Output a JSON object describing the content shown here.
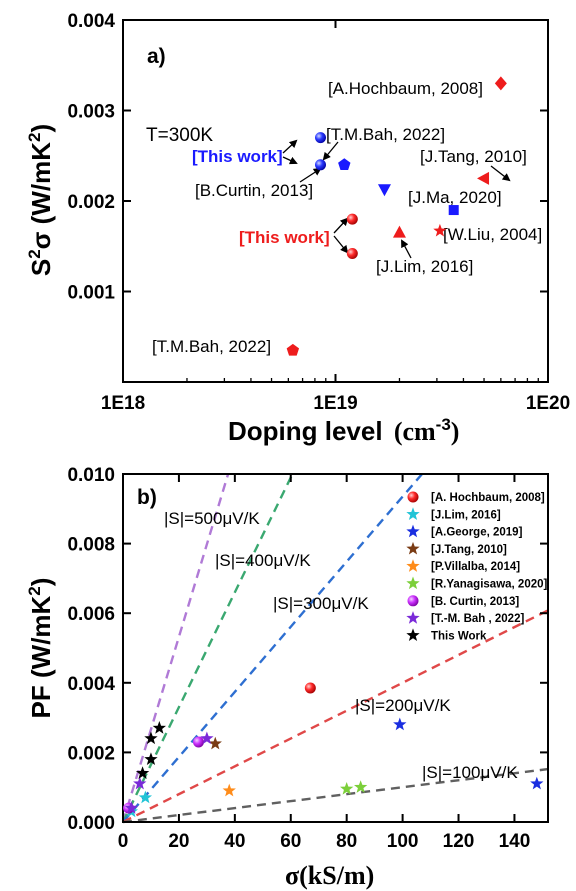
{
  "chart_data": [
    {
      "type": "scatter",
      "panel_label": "a)",
      "xlabel": "Doping level",
      "xlabel_unit": "(cm",
      "xlabel_exp": "-3",
      "xlabel_close": ")",
      "ylabel": "S",
      "ylabel_sup": "2",
      "ylabel_rest": "σ (W/mK",
      "ylabel_sup2": "2",
      "ylabel_close": ")",
      "x_scale": "log",
      "xlim": [
        1e+18,
        1e+20
      ],
      "ylim": [
        0,
        0.004
      ],
      "x_ticks": [
        {
          "value": 1e+18,
          "label": "1E18"
        },
        {
          "value": 1e+19,
          "label": "1E19"
        },
        {
          "value": 1e+20,
          "label": "1E20"
        }
      ],
      "y_ticks": [
        {
          "value": 0.001,
          "label": "0.001"
        },
        {
          "value": 0.002,
          "label": "0.002"
        },
        {
          "value": 0.003,
          "label": "0.003"
        },
        {
          "value": 0.004,
          "label": "0.004"
        }
      ],
      "temperature_note": "T=300K",
      "points": [
        {
          "x": 8.5e+18,
          "y": 0.0027,
          "marker": "circle",
          "color": "#1a1aff"
        },
        {
          "x": 8.5e+18,
          "y": 0.0024,
          "marker": "circle",
          "color": "#1a1aff"
        },
        {
          "x": 1.1e+19,
          "y": 0.0024,
          "marker": "pentagon",
          "color": "#1a1aff"
        },
        {
          "x": 1.7e+19,
          "y": 0.00213,
          "marker": "triangle-down",
          "color": "#1a1aff"
        },
        {
          "x": 3.6e+19,
          "y": 0.0019,
          "marker": "square",
          "color": "#1a1aff"
        },
        {
          "x": 6e+19,
          "y": 0.0033,
          "marker": "diamond",
          "color": "#ee1c1c"
        },
        {
          "x": 5e+19,
          "y": 0.00225,
          "marker": "triangle-left",
          "color": "#ee1c1c"
        },
        {
          "x": 3.1e+19,
          "y": 0.00167,
          "marker": "star",
          "color": "#ee1c1c"
        },
        {
          "x": 2e+19,
          "y": 0.00165,
          "marker": "triangle-up",
          "color": "#ee1c1c"
        },
        {
          "x": 1.2e+19,
          "y": 0.0018,
          "marker": "circle",
          "color": "#ee1c1c"
        },
        {
          "x": 1.2e+19,
          "y": 0.00142,
          "marker": "circle",
          "color": "#ee1c1c"
        },
        {
          "x": 6.3e+18,
          "y": 0.00035,
          "marker": "pentagon",
          "color": "#ee1c1c"
        }
      ],
      "annotations": [
        {
          "text": "[A.Hochbaum, 2008]",
          "style": "normal"
        },
        {
          "text": "[T.M.Bah, 2022]",
          "style": "normal"
        },
        {
          "text": "[This work]",
          "style": "blue"
        },
        {
          "text": "[J.Tang, 2010]",
          "style": "normal"
        },
        {
          "text": "[B.Curtin, 2013]",
          "style": "normal"
        },
        {
          "text": "[J.Ma, 2020]",
          "style": "normal"
        },
        {
          "text": "[This work]",
          "style": "red"
        },
        {
          "text": "[W.Liu, 2004]",
          "style": "normal"
        },
        {
          "text": "[J.Lim, 2016]",
          "style": "normal"
        },
        {
          "text": "[T.M.Bah, 2022]",
          "style": "normal"
        }
      ]
    },
    {
      "type": "scatter",
      "panel_label": "b)",
      "xlabel": "σ(kS/m)",
      "ylabel": "PF (W/mK",
      "ylabel_sup": "2",
      "ylabel_close": ")",
      "xlim": [
        0,
        152
      ],
      "ylim": [
        0,
        0.01
      ],
      "x_ticks": [
        0,
        20,
        40,
        60,
        80,
        100,
        120,
        140
      ],
      "y_ticks": [
        {
          "value": 0,
          "label": "0.000"
        },
        {
          "value": 0.002,
          "label": "0.002"
        },
        {
          "value": 0.004,
          "label": "0.004"
        },
        {
          "value": 0.006,
          "label": "0.006"
        },
        {
          "value": 0.008,
          "label": "0.008"
        },
        {
          "value": 0.01,
          "label": "0.010"
        }
      ],
      "reference_lines": [
        {
          "label": "|S|=500μV/K",
          "slope": 0.000266,
          "color": "#b07ad6"
        },
        {
          "label": "|S|=400μV/K",
          "slope": 0.000165,
          "color": "#3aa870"
        },
        {
          "label": "|S|=300μV/K",
          "slope": 9.35e-05,
          "color": "#2e6fd1"
        },
        {
          "label": "|S|=200μV/K",
          "slope": 4e-05,
          "color": "#e04848"
        },
        {
          "label": "|S|=100μV/K",
          "slope": 1e-05,
          "color": "#606060"
        }
      ],
      "legend": [
        {
          "name": "[A. Hochbaum, 2008]",
          "marker": "ball",
          "color": "#ee1c1c"
        },
        {
          "name": "[J.Lim, 2016]",
          "marker": "star",
          "color": "#22c4d6"
        },
        {
          "name": "[A.George, 2019]",
          "marker": "star",
          "color": "#1a2ee0"
        },
        {
          "name": "[J.Tang, 2010]",
          "marker": "star",
          "color": "#7a3b14"
        },
        {
          "name": "[P.Villalba, 2014]",
          "marker": "star",
          "color": "#ff8c1a"
        },
        {
          "name": "[R.Yanagisawa, 2020]",
          "marker": "star",
          "color": "#7ccf3a"
        },
        {
          "name": "[B. Curtin, 2013]",
          "marker": "ball",
          "color": "#cc33ff"
        },
        {
          "name": "[T.-M. Bah , 2022]",
          "marker": "star",
          "color": "#7a2ad8"
        },
        {
          "name": "This Work",
          "marker": "star",
          "color": "#000000"
        }
      ],
      "series": [
        {
          "series_index": 0,
          "points": [
            [
              67,
              0.00385
            ]
          ]
        },
        {
          "series_index": 1,
          "points": [
            [
              8,
              0.0007
            ],
            [
              3,
              0.0003
            ]
          ]
        },
        {
          "series_index": 2,
          "points": [
            [
              99,
              0.0028
            ],
            [
              148,
              0.0011
            ]
          ]
        },
        {
          "series_index": 3,
          "points": [
            [
              33,
              0.00225
            ]
          ]
        },
        {
          "series_index": 4,
          "points": [
            [
              38,
              0.0009
            ]
          ]
        },
        {
          "series_index": 5,
          "points": [
            [
              80,
              0.00095
            ],
            [
              85,
              0.001
            ]
          ]
        },
        {
          "series_index": 6,
          "points": [
            [
              27,
              0.0023
            ],
            [
              2,
              0.0004
            ]
          ]
        },
        {
          "series_index": 7,
          "points": [
            [
              30,
              0.0024
            ],
            [
              6,
              0.0011
            ],
            [
              3,
              0.0004
            ]
          ]
        },
        {
          "series_index": 8,
          "points": [
            [
              13,
              0.0027
            ],
            [
              10,
              0.0024
            ],
            [
              10,
              0.0018
            ],
            [
              7,
              0.0014
            ]
          ]
        }
      ]
    }
  ]
}
